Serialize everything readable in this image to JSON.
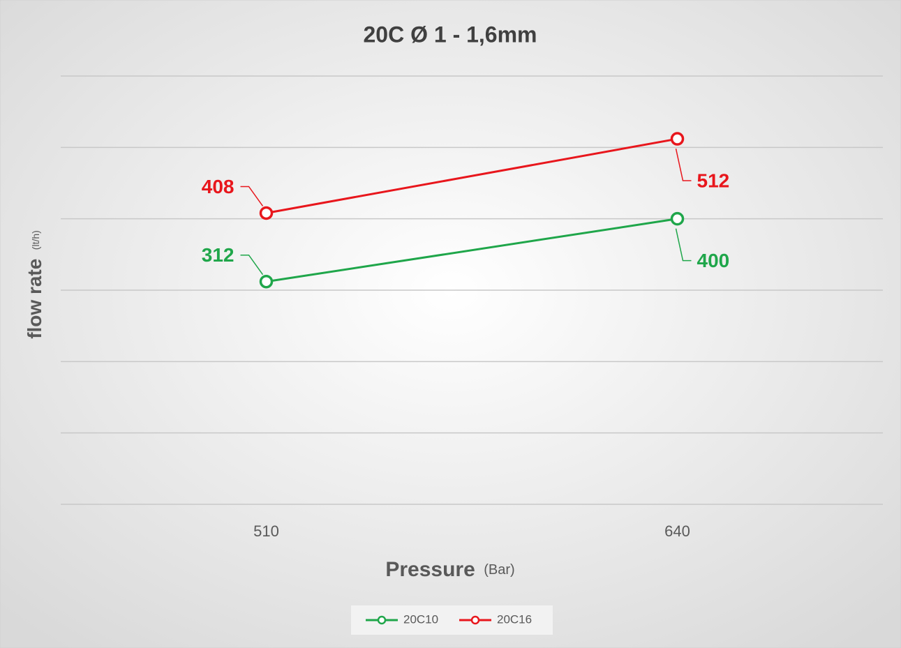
{
  "chart_data": {
    "type": "line",
    "title": "20C Ø 1 - 1,6mm",
    "xlabel": {
      "text": "Pressure",
      "unit": "(Bar)"
    },
    "ylabel": {
      "text": "flow rate",
      "unit": "(lt/h)"
    },
    "categories": [
      "510",
      "640"
    ],
    "series": [
      {
        "name": "20C10",
        "color": "#1fa64a",
        "values": [
          312,
          400
        ]
      },
      {
        "name": "20C16",
        "color": "#e8161c",
        "values": [
          408,
          512
        ]
      }
    ],
    "ylim": [
      0,
      600
    ],
    "yticks": [
      0,
      100,
      200,
      300,
      400,
      500,
      600
    ],
    "grid": true,
    "legend": "bottom"
  }
}
